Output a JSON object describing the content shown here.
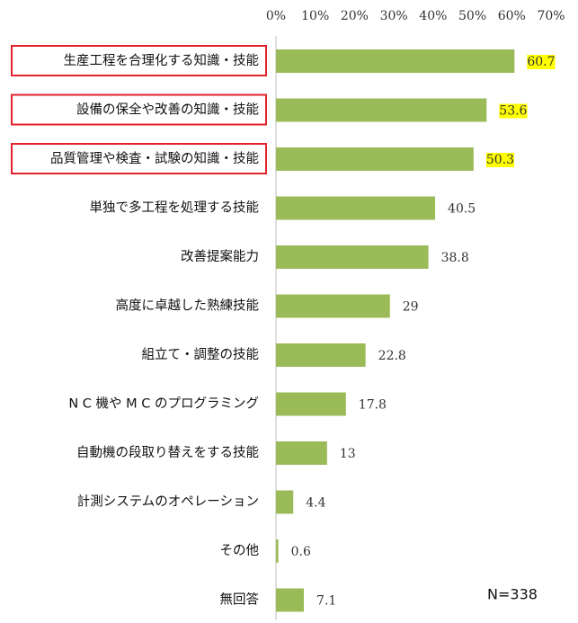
{
  "chart_data": {
    "type": "bar",
    "orientation": "horizontal",
    "categories": [
      "生産工程を合理化する知識・技能",
      "設備の保全や改善の知識・技能",
      "品質管理や検査・試験の知識・技能",
      "単独で多工程を処理する技能",
      "改善提案能力",
      "高度に卓越した熟練技能",
      "組立て・調整の技能",
      "N C 機や M C のプログラミング",
      "自動機の段取り替えをする技能",
      "計測システムのオペレーション",
      "その他",
      "無回答"
    ],
    "values": [
      60.7,
      53.6,
      50.3,
      40.5,
      38.8,
      29,
      22.8,
      17.8,
      13,
      4.4,
      0.6,
      7.1
    ],
    "highlighted": [
      true,
      true,
      true,
      false,
      false,
      false,
      false,
      false,
      false,
      false,
      false,
      false
    ],
    "color": "#9bbb59",
    "highlight_color": "#ffff00",
    "highlight_box_color": "#e3232c",
    "xlim": [
      0,
      70
    ],
    "xticks": [
      {
        "value": 0,
        "label": "0%"
      },
      {
        "value": 10,
        "label": "10%"
      },
      {
        "value": 20,
        "label": "20%"
      },
      {
        "value": 30,
        "label": "30%"
      },
      {
        "value": 40,
        "label": "40%"
      },
      {
        "value": 50,
        "label": "50%"
      },
      {
        "value": 60,
        "label": "60%"
      },
      {
        "value": 70,
        "label": "70%"
      }
    ],
    "annotation": "N=338"
  }
}
